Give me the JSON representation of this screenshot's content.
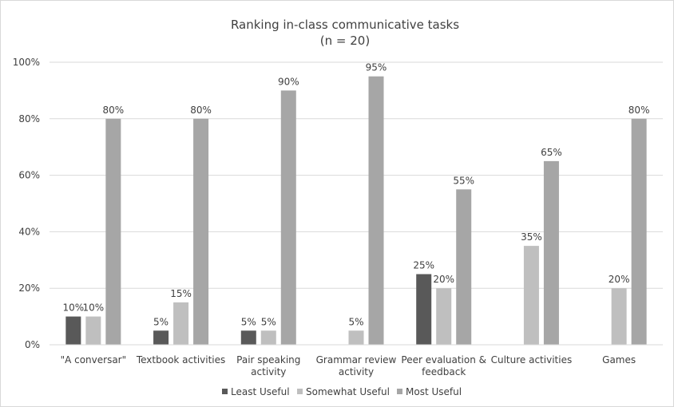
{
  "chart_data": {
    "type": "bar",
    "title": "Ranking in-class communicative tasks",
    "subtitle": "(n = 20)",
    "categories": [
      [
        "\"A conversar\""
      ],
      [
        "Textbook activities"
      ],
      [
        "Pair speaking",
        "activity"
      ],
      [
        "Grammar review",
        "activity"
      ],
      [
        "Peer evaluation &",
        "feedback"
      ],
      [
        "Culture activities"
      ],
      [
        "Games"
      ]
    ],
    "series": [
      {
        "name": "Least Useful",
        "color": "#595959",
        "values": [
          10,
          5,
          5,
          0,
          25,
          0,
          0
        ],
        "labels": [
          "10%",
          "5%",
          "5%",
          "",
          "25%",
          "",
          ""
        ]
      },
      {
        "name": "Somewhat Useful",
        "color": "#bfbfbf",
        "values": [
          10,
          15,
          5,
          5,
          20,
          35,
          20
        ],
        "labels": [
          "10%",
          "15%",
          "5%",
          "5%",
          "20%",
          "35%",
          "20%"
        ]
      },
      {
        "name": "Most Useful",
        "color": "#a6a6a6",
        "values": [
          80,
          80,
          90,
          95,
          55,
          65,
          80
        ],
        "labels": [
          "80%",
          "80%",
          "90%",
          "95%",
          "55%",
          "65%",
          "80%"
        ]
      }
    ],
    "ylim": [
      0,
      100
    ],
    "yticks": [
      "0%",
      "20%",
      "40%",
      "60%",
      "80%",
      "100%"
    ],
    "ytick_values": [
      0,
      20,
      40,
      60,
      80,
      100
    ],
    "grid": true,
    "legend_position": "bottom"
  }
}
